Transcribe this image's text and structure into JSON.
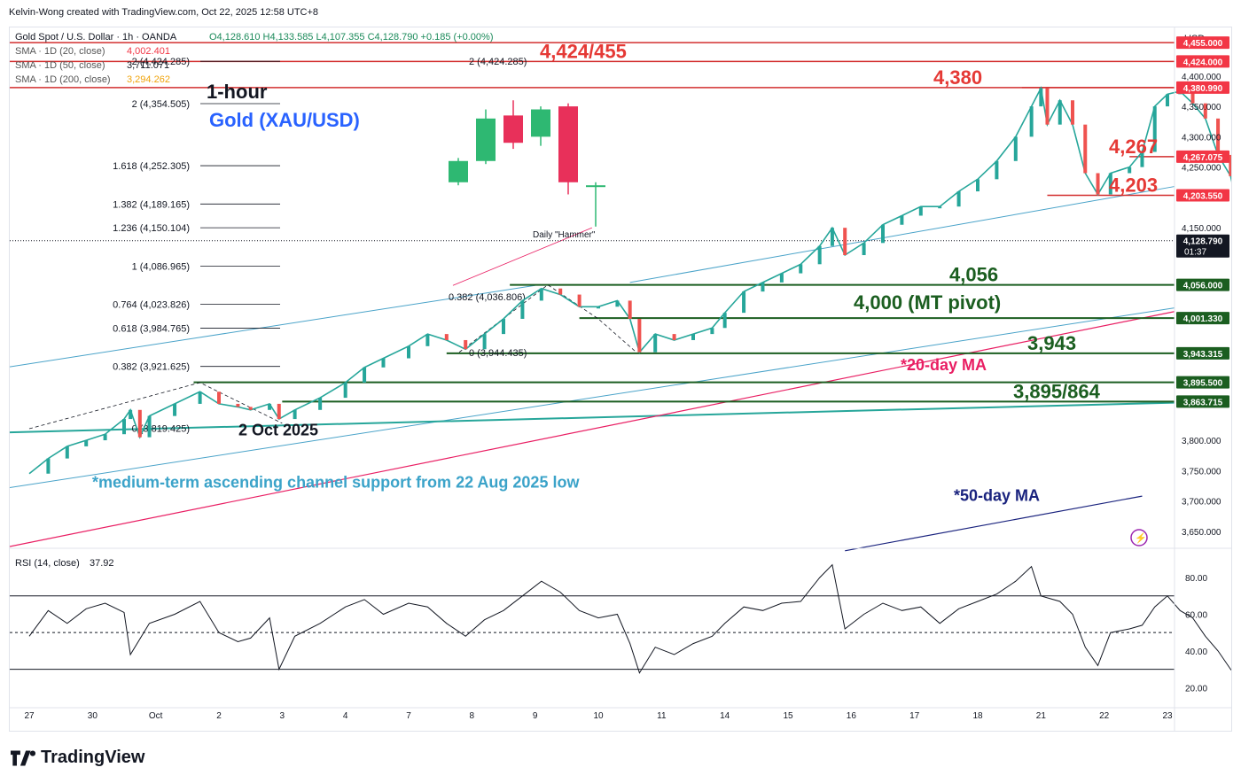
{
  "header": {
    "creator_line": "Kelvin-Wong created with TradingView.com, Oct 22, 2025 12:58 UTC+8"
  },
  "legend": {
    "symbol_line": {
      "name": "Gold Spot / U.S. Dollar · 1h · OANDA",
      "ohlc": "O4,128.610  H4,133.585  L4,107.355  C4,128.790  +0.185 (+0.00%)"
    },
    "sma": [
      {
        "label": "SMA · 1D (20, close)",
        "value": "4,002.401",
        "color": "#f23645"
      },
      {
        "label": "SMA · 1D (50, close)",
        "value": "3,711.071",
        "color": "#131722"
      },
      {
        "label": "SMA · 1D (200, close)",
        "value": "3,294.262",
        "color": "#f0a30a"
      }
    ],
    "rsi": {
      "label": "RSI (14, close)",
      "value": "37.92"
    }
  },
  "currency": "USD",
  "chart_title": {
    "line1": "1-hour",
    "line2": "Gold (XAU/USD)"
  },
  "annotations": {
    "r1": "4,424/455",
    "r2": "4,380",
    "r3": "4,267",
    "r4": "4,203",
    "s1": "4,056",
    "s2": "4,000 (MT pivot)",
    "s3": "3,943",
    "s4": "3,895/864",
    "ma20": "*20-day MA",
    "ma50": "*50-day MA",
    "channel": "*medium-term ascending channel support from 22 Aug 2025 low",
    "date_low": "2 Oct 2025",
    "hammer": "Daily \"Hammer\""
  },
  "fibonacci": [
    {
      "label": "2 (4,424.285)",
      "price": 4424.285
    },
    {
      "label": "2 (4,354.505)",
      "price": 4354.505
    },
    {
      "label": "1.618 (4,252.305)",
      "price": 4252.305
    },
    {
      "label": "1.382 (4,189.165)",
      "price": 4189.165
    },
    {
      "label": "1.236 (4,150.104)",
      "price": 4150.104
    },
    {
      "label": "1 (4,086.965)",
      "price": 4086.965
    },
    {
      "label": "0.764 (4,023.826)",
      "price": 4023.826
    },
    {
      "label": "0.618 (3,984.765)",
      "price": 3984.765
    },
    {
      "label": "0.382 (3,921.625)",
      "price": 3921.625
    },
    {
      "label": "0 (3,819.425)",
      "price": 3819.425
    },
    {
      "label": "0.382 (4,036.806)",
      "price": 4036.806
    },
    {
      "label": "0 (3,944.435)",
      "price": 3944.435
    }
  ],
  "price_tags": [
    {
      "label": "4,455.000",
      "price": 4455,
      "color": "#f23645"
    },
    {
      "label": "4,424.000",
      "price": 4424,
      "color": "#f23645"
    },
    {
      "label": "4,380.990",
      "price": 4380.99,
      "color": "#f23645"
    },
    {
      "label": "4,267.075",
      "price": 4267.075,
      "color": "#f23645"
    },
    {
      "label": "4,203.550",
      "price": 4203.55,
      "color": "#f23645"
    },
    {
      "label": "4,128.790",
      "price": 4128.79,
      "color": "#131722",
      "sub": "01:37"
    },
    {
      "label": "4,056.000",
      "price": 4056,
      "color": "#1b5e20"
    },
    {
      "label": "4,001.330",
      "price": 4001.33,
      "color": "#1b5e20"
    },
    {
      "label": "3,943.315",
      "price": 3943.315,
      "color": "#1b5e20"
    },
    {
      "label": "3,895.500",
      "price": 3895.5,
      "color": "#1b5e20"
    },
    {
      "label": "3,863.715",
      "price": 3863.715,
      "color": "#1b5e20"
    }
  ],
  "chart_data": [
    {
      "type": "line",
      "name": "XAU/USD 1h price",
      "title": "Gold (XAU/USD)",
      "ylim": [
        3625,
        4480
      ],
      "y_ticks": [
        "4,400.000",
        "4,350.000",
        "4,300.000",
        "4,250.000",
        "4,150.000",
        "3,800.000",
        "3,750.000",
        "3,700.000",
        "3,650.000"
      ],
      "y_tick_values": [
        4400,
        4350,
        4300,
        4250,
        4150,
        3800,
        3750,
        3700,
        3650
      ],
      "x_ticks": [
        "27",
        "30",
        "Oct",
        "2",
        "3",
        "4",
        "7",
        "8",
        "9",
        "10",
        "11",
        "14",
        "15",
        "16",
        "17",
        "18",
        "21",
        "22",
        "23"
      ],
      "x": [
        "27",
        "30",
        "Oct",
        "2",
        "3",
        "4",
        "7",
        "8",
        "9",
        "10",
        "11",
        "14",
        "15",
        "16",
        "17",
        "18",
        "21",
        "22",
        "23"
      ],
      "points": [
        [
          0,
          3745
        ],
        [
          0.3,
          3770
        ],
        [
          0.6,
          3790
        ],
        [
          0.9,
          3800
        ],
        [
          1.2,
          3810
        ],
        [
          1.5,
          3835
        ],
        [
          1.6,
          3850
        ],
        [
          1.75,
          3805
        ],
        [
          1.9,
          3840
        ],
        [
          2.3,
          3860
        ],
        [
          2.7,
          3880
        ],
        [
          3.0,
          3860
        ],
        [
          3.3,
          3855
        ],
        [
          3.5,
          3850
        ],
        [
          3.8,
          3860
        ],
        [
          3.95,
          3835
        ],
        [
          4.2,
          3850
        ],
        [
          4.6,
          3870
        ],
        [
          5.0,
          3895
        ],
        [
          5.3,
          3920
        ],
        [
          5.6,
          3935
        ],
        [
          6.0,
          3955
        ],
        [
          6.3,
          3975
        ],
        [
          6.6,
          3965
        ],
        [
          6.9,
          3950
        ],
        [
          7.2,
          3975
        ],
        [
          7.5,
          4000
        ],
        [
          7.8,
          4030
        ],
        [
          8.1,
          4050
        ],
        [
          8.4,
          4040
        ],
        [
          8.7,
          4020
        ],
        [
          9.0,
          4020
        ],
        [
          9.3,
          4030
        ],
        [
          9.5,
          4000
        ],
        [
          9.65,
          3945
        ],
        [
          9.9,
          3975
        ],
        [
          10.2,
          3965
        ],
        [
          10.5,
          3975
        ],
        [
          10.8,
          3985
        ],
        [
          11.0,
          4010
        ],
        [
          11.3,
          4045
        ],
        [
          11.6,
          4060
        ],
        [
          11.9,
          4075
        ],
        [
          12.2,
          4090
        ],
        [
          12.5,
          4120
        ],
        [
          12.7,
          4150
        ],
        [
          12.9,
          4105
        ],
        [
          13.2,
          4125
        ],
        [
          13.5,
          4155
        ],
        [
          13.8,
          4170
        ],
        [
          14.1,
          4185
        ],
        [
          14.4,
          4185
        ],
        [
          14.7,
          4210
        ],
        [
          15.0,
          4230
        ],
        [
          15.3,
          4260
        ],
        [
          15.6,
          4300
        ],
        [
          15.85,
          4350
        ],
        [
          16.0,
          4380
        ],
        [
          16.1,
          4320
        ],
        [
          16.3,
          4360
        ],
        [
          16.5,
          4320
        ],
        [
          16.7,
          4240
        ],
        [
          16.9,
          4205
        ],
        [
          17.1,
          4240
        ],
        [
          17.4,
          4250
        ],
        [
          17.6,
          4275
        ],
        [
          17.8,
          4350
        ],
        [
          18.0,
          4370
        ],
        [
          18.2,
          4375
        ],
        [
          18.4,
          4355
        ],
        [
          18.6,
          4330
        ],
        [
          18.8,
          4270
        ],
        [
          19.0,
          4235
        ],
        [
          19.2,
          4140
        ],
        [
          19.4,
          4110
        ],
        [
          19.6,
          4100
        ],
        [
          19.7,
          4060
        ],
        [
          19.8,
          4110
        ],
        [
          19.95,
          4128.79
        ]
      ]
    },
    {
      "type": "line",
      "name": "RSI (14, close)",
      "ylim": [
        10,
        95
      ],
      "y_ticks": [
        "80.00",
        "60.00",
        "40.00",
        "20.00"
      ],
      "y_tick_values": [
        80,
        60,
        40,
        20
      ],
      "bands": [
        30,
        50,
        70
      ],
      "last": 37.92,
      "points": [
        [
          0,
          48
        ],
        [
          0.3,
          62
        ],
        [
          0.6,
          55
        ],
        [
          0.9,
          63
        ],
        [
          1.2,
          66
        ],
        [
          1.5,
          61
        ],
        [
          1.6,
          38
        ],
        [
          1.9,
          55
        ],
        [
          2.3,
          60
        ],
        [
          2.7,
          67
        ],
        [
          3.0,
          50
        ],
        [
          3.3,
          45
        ],
        [
          3.5,
          47
        ],
        [
          3.8,
          58
        ],
        [
          3.95,
          30
        ],
        [
          4.2,
          48
        ],
        [
          4.6,
          55
        ],
        [
          5.0,
          64
        ],
        [
          5.3,
          68
        ],
        [
          5.6,
          60
        ],
        [
          6.0,
          66
        ],
        [
          6.3,
          64
        ],
        [
          6.6,
          55
        ],
        [
          6.9,
          48
        ],
        [
          7.2,
          57
        ],
        [
          7.5,
          62
        ],
        [
          7.8,
          70
        ],
        [
          8.1,
          78
        ],
        [
          8.4,
          72
        ],
        [
          8.7,
          62
        ],
        [
          9.0,
          58
        ],
        [
          9.3,
          60
        ],
        [
          9.5,
          44
        ],
        [
          9.65,
          28
        ],
        [
          9.9,
          42
        ],
        [
          10.2,
          38
        ],
        [
          10.5,
          44
        ],
        [
          10.8,
          48
        ],
        [
          11.0,
          55
        ],
        [
          11.3,
          64
        ],
        [
          11.6,
          62
        ],
        [
          11.9,
          66
        ],
        [
          12.2,
          67
        ],
        [
          12.5,
          80
        ],
        [
          12.7,
          87
        ],
        [
          12.9,
          52
        ],
        [
          13.2,
          60
        ],
        [
          13.5,
          66
        ],
        [
          13.8,
          62
        ],
        [
          14.1,
          64
        ],
        [
          14.4,
          55
        ],
        [
          14.7,
          63
        ],
        [
          15.0,
          67
        ],
        [
          15.3,
          71
        ],
        [
          15.6,
          78
        ],
        [
          15.85,
          86
        ],
        [
          16.0,
          70
        ],
        [
          16.3,
          67
        ],
        [
          16.5,
          60
        ],
        [
          16.7,
          42
        ],
        [
          16.9,
          32
        ],
        [
          17.1,
          50
        ],
        [
          17.4,
          52
        ],
        [
          17.6,
          54
        ],
        [
          17.8,
          64
        ],
        [
          18.0,
          70
        ],
        [
          18.2,
          62
        ],
        [
          18.4,
          58
        ],
        [
          18.6,
          48
        ],
        [
          18.8,
          40
        ],
        [
          19.0,
          30
        ],
        [
          19.2,
          22
        ],
        [
          19.4,
          21
        ],
        [
          19.6,
          24
        ],
        [
          19.7,
          22
        ],
        [
          19.8,
          28
        ],
        [
          19.95,
          37.92
        ]
      ]
    }
  ]
}
